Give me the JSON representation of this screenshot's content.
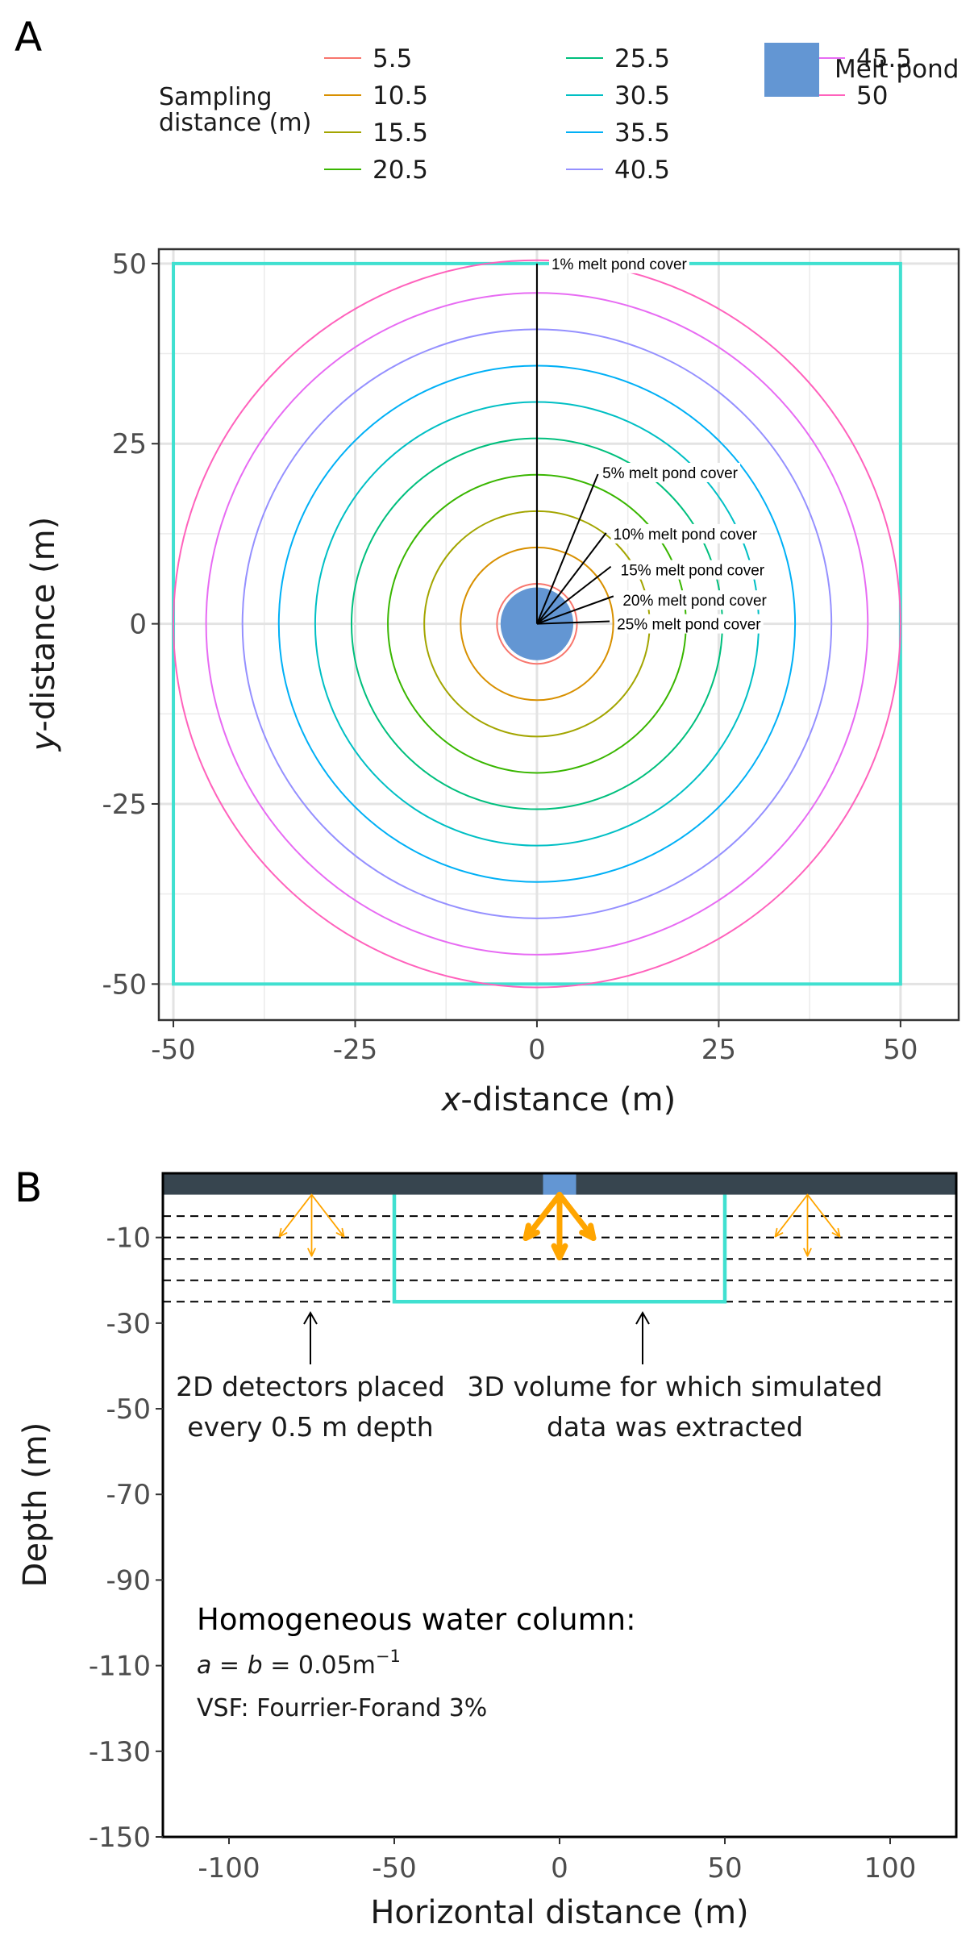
{
  "panel_a_label": "A",
  "panel_b_label": "B",
  "legend": {
    "title_line1": "Sampling",
    "title_line2": "distance (m)",
    "pond_label": "Melt pond",
    "pond_color": "#6396d3"
  },
  "chart_data": [
    {
      "type": "line",
      "panel": "A",
      "xlabel_italic": "x",
      "xlabel_rest": "-distance (m)",
      "ylabel_italic": "y",
      "ylabel_rest": "-distance (m)",
      "xlim": [
        -52,
        58
      ],
      "ylim": [
        -55,
        52
      ],
      "xticks": [
        -50,
        -25,
        0,
        25,
        50
      ],
      "yticks": [
        50,
        25,
        0,
        -25,
        -50
      ],
      "xtick_labels": [
        "-50",
        "-25",
        "0",
        "25",
        "50"
      ],
      "ytick_labels": [
        "50",
        "25",
        "0",
        "-25",
        "-50"
      ],
      "grid": true,
      "series": [
        {
          "name": "5.5",
          "radius": 5.5,
          "color": "#f8766d"
        },
        {
          "name": "10.5",
          "radius": 10.5,
          "color": "#d89000"
        },
        {
          "name": "15.5",
          "radius": 15.5,
          "color": "#a3a500"
        },
        {
          "name": "20.5",
          "radius": 20.5,
          "color": "#39b600"
        },
        {
          "name": "25.5",
          "radius": 25.5,
          "color": "#00bf7d"
        },
        {
          "name": "30.5",
          "radius": 30.5,
          "color": "#00bfc4"
        },
        {
          "name": "35.5",
          "radius": 35.5,
          "color": "#00b0f6"
        },
        {
          "name": "40.5",
          "radius": 40.5,
          "color": "#9590ff"
        },
        {
          "name": "45.5",
          "radius": 45.5,
          "color": "#e76bf3"
        },
        {
          "name": "50",
          "radius": 50,
          "color": "#ff62bc"
        }
      ],
      "melt_pond": {
        "center": [
          0,
          0
        ],
        "radius": 5
      },
      "domain_square": {
        "xmin": -50,
        "xmax": 50,
        "ymin": -50,
        "ymax": 50,
        "color": "#40e0d0"
      },
      "annotations": [
        {
          "text": "1% melt pond cover",
          "radius": 50,
          "angle_deg": 90,
          "label_x": 2,
          "label_y": 50
        },
        {
          "text": "5% melt pond cover",
          "radius": 22.4,
          "angle_deg": 68,
          "label_x": 9,
          "label_y": 21
        },
        {
          "text": "10% melt pond cover",
          "radius": 15.8,
          "angle_deg": 53,
          "label_x": 10.5,
          "label_y": 12.5
        },
        {
          "text": "15% melt pond cover",
          "radius": 12.9,
          "angle_deg": 38,
          "label_x": 11.5,
          "label_y": 7.5
        },
        {
          "text": "20% melt pond cover",
          "radius": 11.2,
          "angle_deg": 20,
          "label_x": 11.8,
          "label_y": 3.3
        },
        {
          "text": "25% melt pond cover",
          "radius": 10,
          "angle_deg": 2,
          "label_x": 11,
          "label_y": 0
        }
      ]
    },
    {
      "type": "diagram",
      "panel": "B",
      "xlabel": "Horizontal distance (m)",
      "ylabel": "Depth (m)",
      "xlim": [
        -120,
        120
      ],
      "ylim": [
        -150,
        5
      ],
      "xticks": [
        -100,
        -50,
        0,
        50,
        100
      ],
      "xtick_labels": [
        "-100",
        "-50",
        "0",
        "50",
        "100"
      ],
      "yticks": [
        -10,
        -30,
        -50,
        -70,
        -90,
        -110,
        -130,
        -150
      ],
      "ytick_labels": [
        "-10",
        "-30",
        "-50",
        "-70",
        "-90",
        "-110",
        "-130",
        "-150"
      ],
      "ice_color": "#37454f",
      "pond_x_range": [
        -5,
        5
      ],
      "detector_depths": [
        -5,
        -10,
        -15,
        -20,
        -25
      ],
      "volume": {
        "xmin": -50,
        "xmax": 50,
        "depth": -25,
        "color": "#40e0d0"
      },
      "arrow_color": "#ffa500",
      "arrow_sources": [
        -75,
        0,
        75
      ],
      "labels": {
        "detectors_line1": "2D detectors placed",
        "detectors_line2": "every 0.5 m depth",
        "volume_line1": "3D volume for which simulated",
        "volume_line2": "data was extracted",
        "water_head": "Homogeneous water column:",
        "water_eq_a": "a",
        "water_eq_eq1": " = ",
        "water_eq_b": "b",
        "water_eq_value": " = 0.05m",
        "water_eq_sup": "−1",
        "water_vsf": "VSF: Fourrier-Forand 3%"
      }
    }
  ]
}
